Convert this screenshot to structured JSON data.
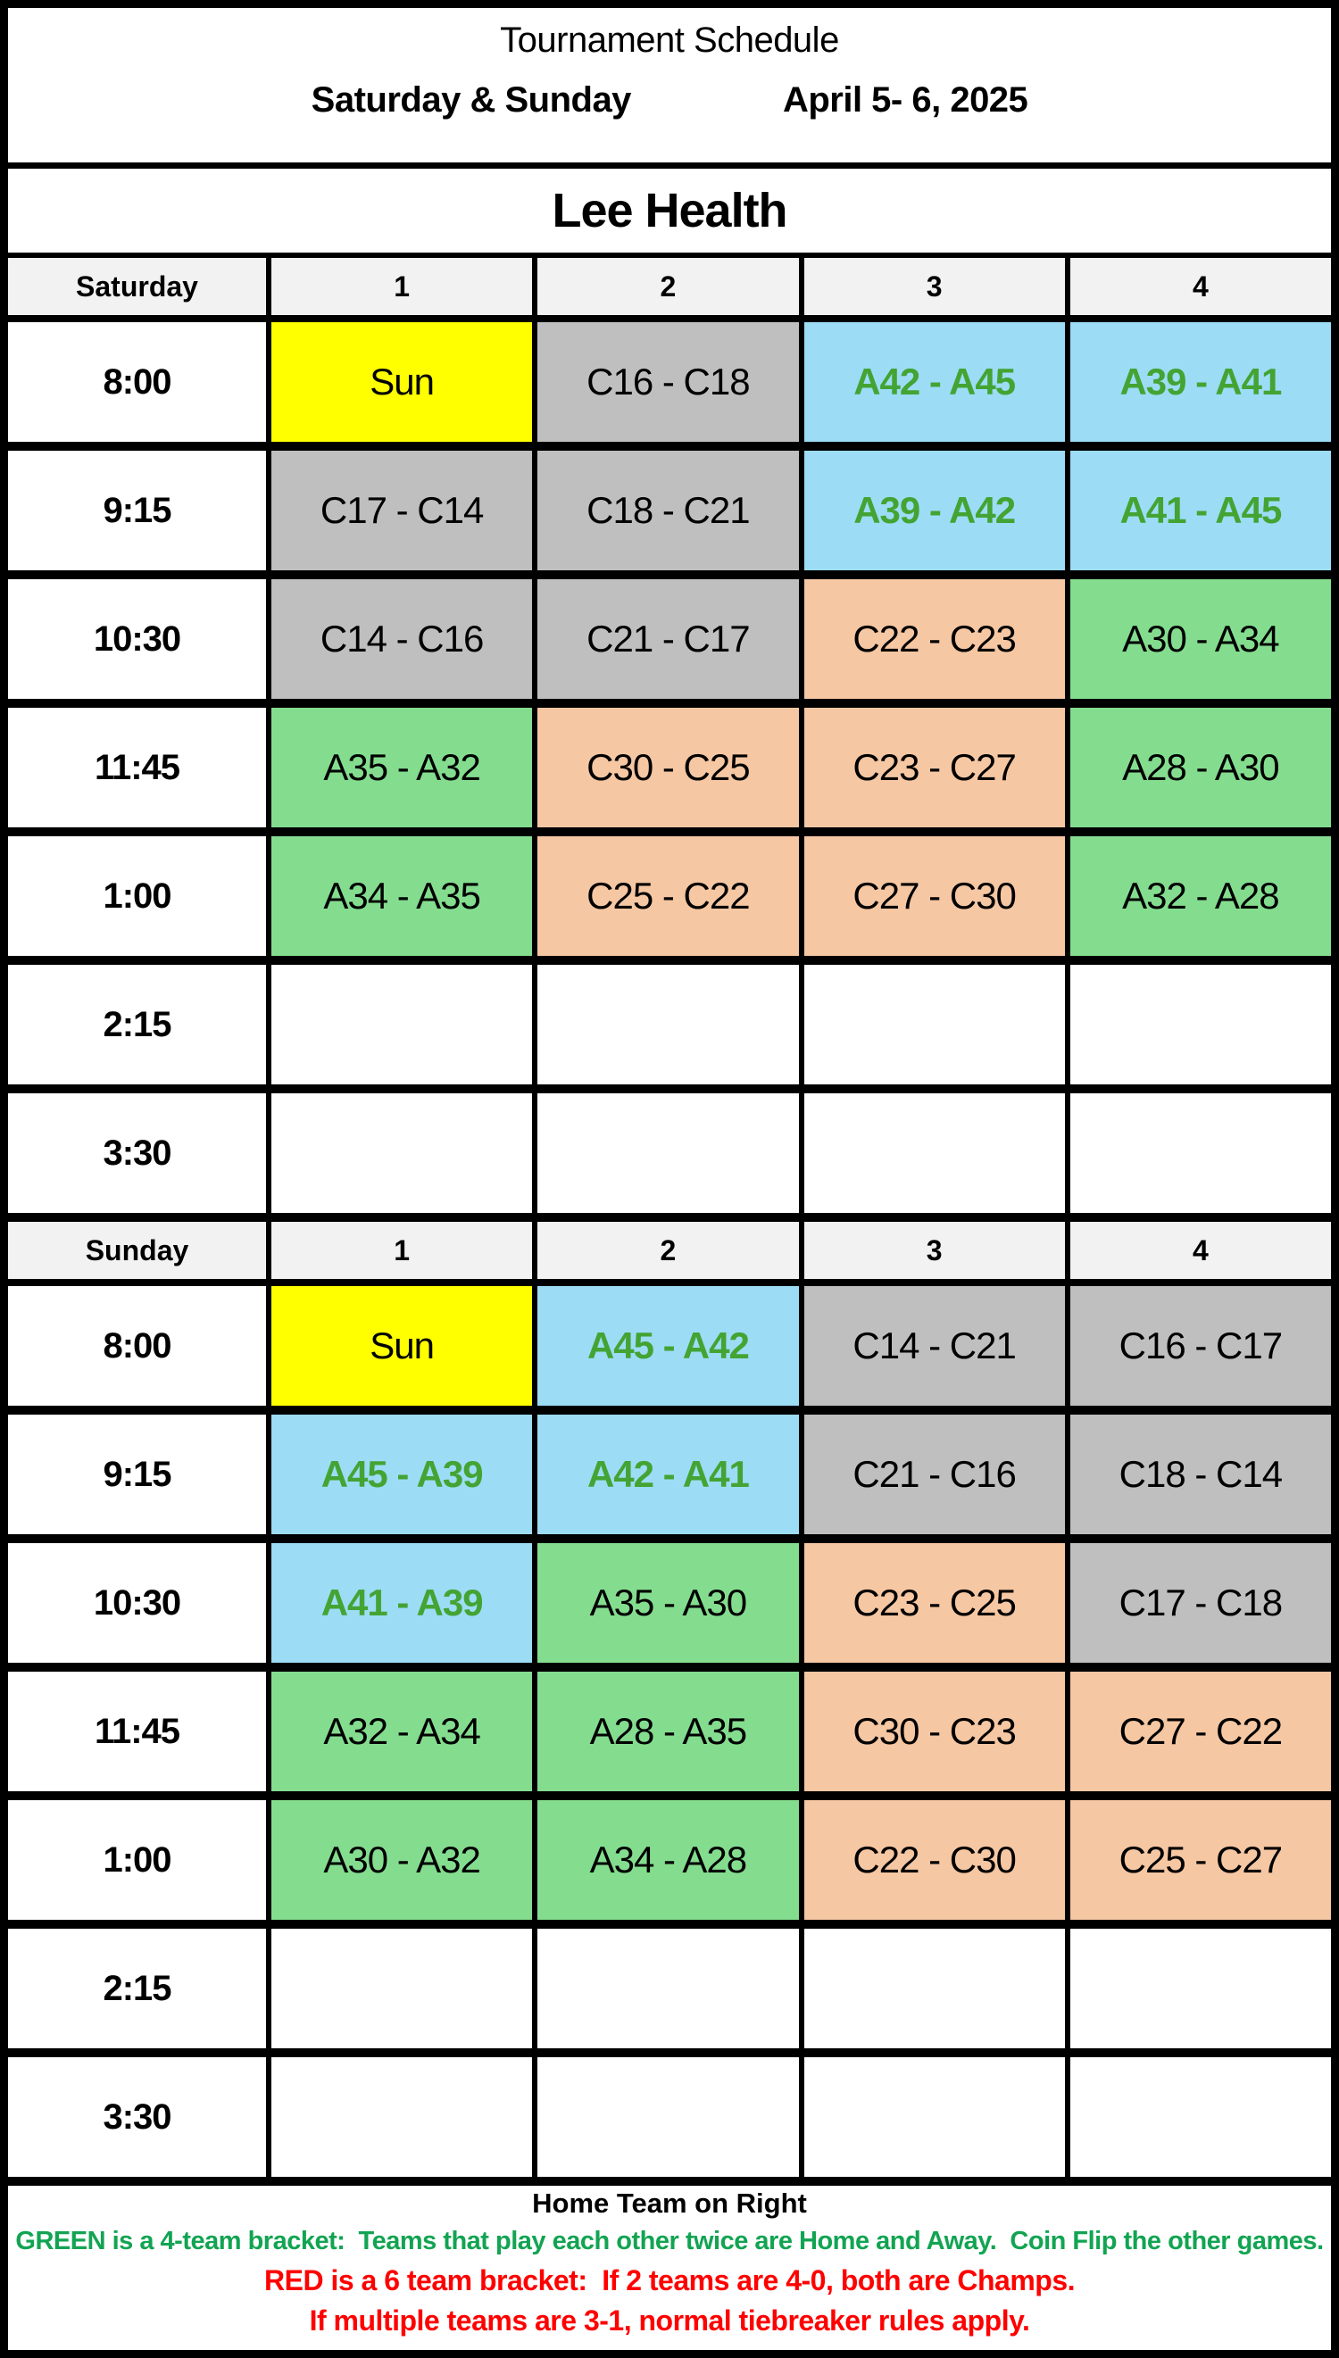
{
  "header": {
    "title": "Tournament Schedule",
    "days_label": "Saturday & Sunday",
    "dates_label": "April 5- 6, 2025",
    "venue": "Lee Health"
  },
  "colors": {
    "yellow": "#FFFF00",
    "gray": "#BFBFBF",
    "blue": "#9DDCF5",
    "green": "#84DD8F",
    "peach": "#F6C7A3",
    "white": "#FFFFFF",
    "header_bg": "#F2F2F2",
    "cell_green_text": "#43A433",
    "note_green": "#12A452",
    "note_red": "#FF0000"
  },
  "days": [
    {
      "label": "Saturday",
      "courts": [
        "1",
        "2",
        "3",
        "4"
      ],
      "rows": [
        {
          "time": "8:00",
          "games": [
            {
              "text": "Sun",
              "bg": "yellow"
            },
            {
              "text": "C16 - C18",
              "bg": "gray"
            },
            {
              "text": "A42 - A45",
              "bg": "blue",
              "fg": "green"
            },
            {
              "text": "A39 - A41",
              "bg": "blue",
              "fg": "green"
            }
          ]
        },
        {
          "time": "9:15",
          "games": [
            {
              "text": "C17 - C14",
              "bg": "gray"
            },
            {
              "text": "C18 - C21",
              "bg": "gray"
            },
            {
              "text": "A39 - A42",
              "bg": "blue",
              "fg": "green"
            },
            {
              "text": "A41 - A45",
              "bg": "blue",
              "fg": "green"
            }
          ]
        },
        {
          "time": "10:30",
          "games": [
            {
              "text": "C14 - C16",
              "bg": "gray"
            },
            {
              "text": "C21 - C17",
              "bg": "gray"
            },
            {
              "text": "C22 - C23",
              "bg": "peach"
            },
            {
              "text": "A30 - A34",
              "bg": "green"
            }
          ]
        },
        {
          "time": "11:45",
          "games": [
            {
              "text": "A35 - A32",
              "bg": "green"
            },
            {
              "text": "C30 - C25",
              "bg": "peach"
            },
            {
              "text": "C23 - C27",
              "bg": "peach"
            },
            {
              "text": "A28 - A30",
              "bg": "green"
            }
          ]
        },
        {
          "time": "1:00",
          "games": [
            {
              "text": "A34 - A35",
              "bg": "green"
            },
            {
              "text": "C25 - C22",
              "bg": "peach"
            },
            {
              "text": "C27 - C30",
              "bg": "peach"
            },
            {
              "text": "A32 - A28",
              "bg": "green"
            }
          ]
        },
        {
          "time": "2:15",
          "games": [
            {
              "text": "",
              "bg": "white"
            },
            {
              "text": "",
              "bg": "white"
            },
            {
              "text": "",
              "bg": "white"
            },
            {
              "text": "",
              "bg": "white"
            }
          ]
        },
        {
          "time": "3:30",
          "games": [
            {
              "text": "",
              "bg": "white"
            },
            {
              "text": "",
              "bg": "white"
            },
            {
              "text": "",
              "bg": "white"
            },
            {
              "text": "",
              "bg": "white"
            }
          ]
        }
      ]
    },
    {
      "label": "Sunday",
      "courts": [
        "1",
        "2",
        "3",
        "4"
      ],
      "rows": [
        {
          "time": "8:00",
          "games": [
            {
              "text": "Sun",
              "bg": "yellow"
            },
            {
              "text": "A45 - A42",
              "bg": "blue",
              "fg": "green"
            },
            {
              "text": "C14 - C21",
              "bg": "gray"
            },
            {
              "text": "C16 - C17",
              "bg": "gray"
            }
          ]
        },
        {
          "time": "9:15",
          "games": [
            {
              "text": "A45 - A39",
              "bg": "blue",
              "fg": "green"
            },
            {
              "text": "A42 - A41",
              "bg": "blue",
              "fg": "green"
            },
            {
              "text": "C21 - C16",
              "bg": "gray"
            },
            {
              "text": "C18 - C14",
              "bg": "gray"
            }
          ]
        },
        {
          "time": "10:30",
          "games": [
            {
              "text": "A41 - A39",
              "bg": "blue",
              "fg": "green"
            },
            {
              "text": "A35 - A30",
              "bg": "green"
            },
            {
              "text": "C23 - C25",
              "bg": "peach"
            },
            {
              "text": "C17 - C18",
              "bg": "gray"
            }
          ]
        },
        {
          "time": "11:45",
          "games": [
            {
              "text": "A32 - A34",
              "bg": "green"
            },
            {
              "text": "A28 - A35",
              "bg": "green"
            },
            {
              "text": "C30 - C23",
              "bg": "peach"
            },
            {
              "text": "C27 - C22",
              "bg": "peach"
            }
          ]
        },
        {
          "time": "1:00",
          "games": [
            {
              "text": "A30 - A32",
              "bg": "green"
            },
            {
              "text": "A34 - A28",
              "bg": "green"
            },
            {
              "text": "C22 - C30",
              "bg": "peach"
            },
            {
              "text": "C25 - C27",
              "bg": "peach"
            }
          ]
        },
        {
          "time": "2:15",
          "games": [
            {
              "text": "",
              "bg": "white"
            },
            {
              "text": "",
              "bg": "white"
            },
            {
              "text": "",
              "bg": "white"
            },
            {
              "text": "",
              "bg": "white"
            }
          ]
        },
        {
          "time": "3:30",
          "games": [
            {
              "text": "",
              "bg": "white"
            },
            {
              "text": "",
              "bg": "white"
            },
            {
              "text": "",
              "bg": "white"
            },
            {
              "text": "",
              "bg": "white"
            }
          ]
        }
      ]
    }
  ],
  "footer": {
    "home_note": "Home Team on Right",
    "green_note": "GREEN is a 4-team bracket:  Teams that play each other twice are Home and Away.  Coin Flip the other games.",
    "red_note_1": "RED is a 6 team bracket:  If 2 teams are 4-0, both are Champs.",
    "red_note_2": "If multiple teams are 3-1, normal tiebreaker rules apply."
  }
}
